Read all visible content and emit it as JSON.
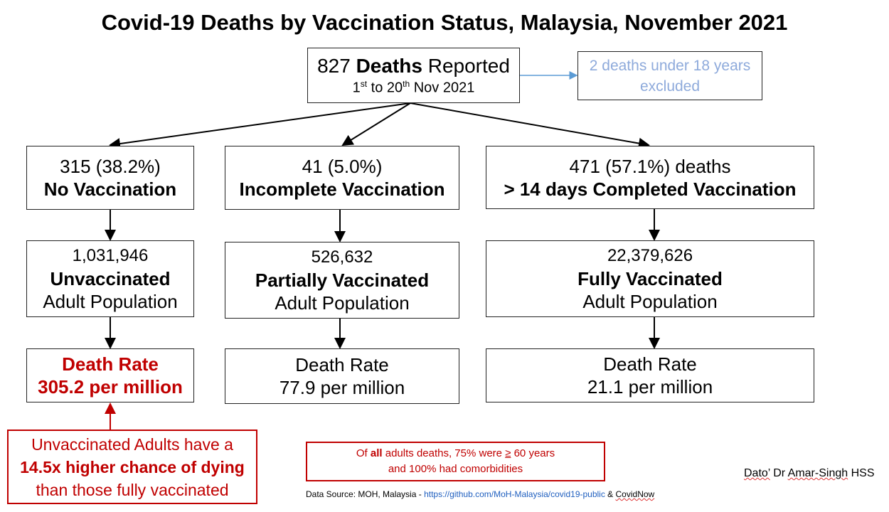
{
  "title": "Covid-19 Deaths by Vaccination Status, Malaysia, November 2021",
  "top": {
    "count": "827",
    "bold": "Deaths",
    "rest": "Reported",
    "d1": "1",
    "sup1": "st",
    "mid": " to 20",
    "sup2": "th",
    "end": " Nov 2021"
  },
  "excluded": {
    "line1": "2 deaths under 18 years",
    "line2": "excluded"
  },
  "groups": [
    {
      "deaths": "315 (38.2%)",
      "status": "No Vaccination",
      "population": "1,031,946",
      "pop_label": "Unvaccinated",
      "pop_suffix": "Adult Population",
      "rate_label": "Death Rate",
      "rate": "305.2 per million"
    },
    {
      "deaths": "41 (5.0%)",
      "status": "Incomplete Vaccination",
      "population": "526,632",
      "pop_label": "Partially Vaccinated",
      "pop_suffix": "Adult Population",
      "rate_label": "Death Rate",
      "rate": "77.9 per million"
    },
    {
      "deaths": "471 (57.1%) deaths",
      "status": "> 14 days Completed Vaccination",
      "population": "22,379,626",
      "pop_label": "Fully Vaccinated",
      "pop_suffix": "Adult Population",
      "rate_label": "Death Rate",
      "rate": "21.1 per million"
    }
  ],
  "callout": {
    "line1": "Unvaccinated Adults have a",
    "line2": "14.5x higher chance of dying",
    "line3": "than those fully vaccinated"
  },
  "note": {
    "pre": "Of ",
    "bold": "all",
    "mid": " adults deaths, 75% were ",
    "ge": "≥",
    "post": " 60 years",
    "line2": "and 100% had comorbidities"
  },
  "author": {
    "first": "Dato’",
    "mid": " Dr ",
    "last": "Amar-Singh",
    "suffix": " HSS"
  },
  "source": {
    "prefix": "Data Source: MOH, Malaysia - ",
    "link": "https://github.com/MoH-Malaysia/covid19-public",
    "amp": " & ",
    "covidnow": "CovidNow"
  }
}
